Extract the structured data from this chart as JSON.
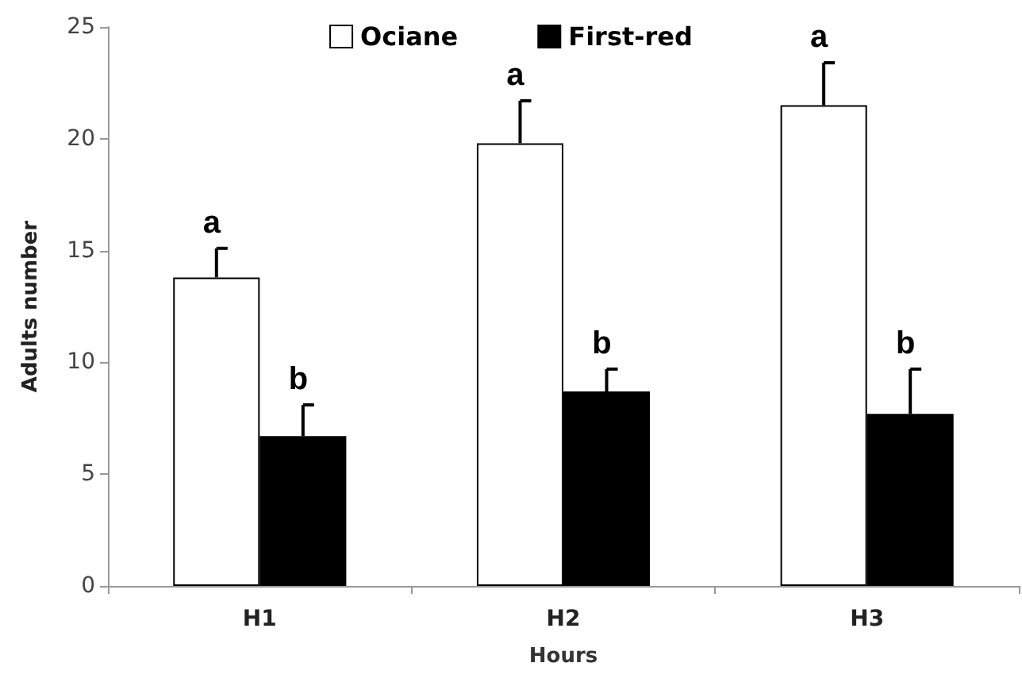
{
  "chart_data": {
    "type": "bar",
    "xlabel": "Hours",
    "ylabel": "Adults number",
    "categories": [
      "H1",
      "H2",
      "H3"
    ],
    "series": [
      {
        "name": "Ociane",
        "color": "#ffffff",
        "values": [
          13.8,
          19.8,
          21.5
        ],
        "errors": [
          [
            13.8,
            15.1
          ],
          [
            19.8,
            21.7
          ],
          [
            21.5,
            23.4
          ]
        ],
        "value_labels": [
          "a",
          "a",
          "a"
        ]
      },
      {
        "name": "First-red",
        "color": "#000000",
        "values": [
          6.7,
          8.7,
          7.7
        ],
        "errors": [
          [
            6.7,
            8.1
          ],
          [
            8.7,
            9.7
          ],
          [
            7.7,
            9.7
          ]
        ],
        "value_labels": [
          "b",
          "b",
          "b"
        ]
      }
    ],
    "ylim": [
      0,
      25
    ],
    "yticks": [
      0,
      5,
      10,
      15,
      20,
      25
    ],
    "grid": false,
    "legend": "top"
  }
}
